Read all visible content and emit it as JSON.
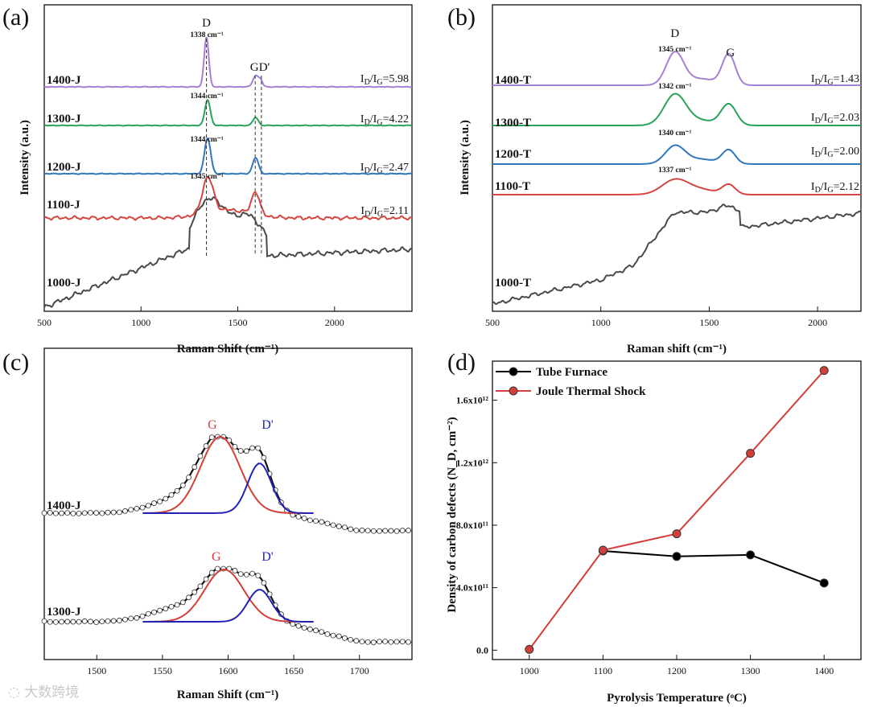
{
  "panel_letters": [
    "(a)",
    "(b)",
    "(c)",
    "(d)"
  ],
  "chart_data": [
    {
      "panel": "(a)",
      "type": "line",
      "xlabel": "Raman Shift (cm⁻¹)",
      "ylabel": "Intensity (a.u.)",
      "xlim": [
        500,
        2400
      ],
      "x_ticks": [
        "500",
        "1000",
        "1500",
        "2000"
      ],
      "peak_labels": [
        "D",
        "G",
        "D'"
      ],
      "series": [
        {
          "name": "1000-J",
          "ratio": ""
        },
        {
          "name": "1100-J",
          "ratio": "2.11",
          "peak": "1345 cm⁻¹"
        },
        {
          "name": "1200-J",
          "ratio": "2.47",
          "peak": "1344 cm⁻¹"
        },
        {
          "name": "1300-J",
          "ratio": "4.22",
          "peak": "1344 cm⁻¹"
        },
        {
          "name": "1400-J",
          "ratio": "5.98",
          "peak": "1338 cm⁻¹"
        }
      ]
    },
    {
      "panel": "(b)",
      "type": "line",
      "xlabel": "Raman shift (cm⁻¹)",
      "ylabel": "Intensity (a.u.)",
      "xlim": [
        500,
        2200
      ],
      "x_ticks": [
        "500",
        "1000",
        "1500",
        "2000"
      ],
      "peak_labels": [
        "D",
        "G"
      ],
      "series": [
        {
          "name": "1000-T",
          "ratio": ""
        },
        {
          "name": "1100-T",
          "ratio": "2.12",
          "peak": "1337 cm⁻¹"
        },
        {
          "name": "1200-T",
          "ratio": "2.00",
          "peak": "1340 cm⁻¹"
        },
        {
          "name": "1300-T",
          "ratio": "2.03",
          "peak": "1342 cm⁻¹"
        },
        {
          "name": "1400-T",
          "ratio": "1.43",
          "peak": "1345 cm⁻¹"
        }
      ]
    },
    {
      "panel": "(c)",
      "type": "line",
      "xlabel": "Raman Shift (cm⁻¹)",
      "xlim": [
        1460,
        1740
      ],
      "x_ticks": [
        "1500",
        "1550",
        "1600",
        "1650",
        "1700"
      ],
      "fit_labels": [
        "G",
        "D'"
      ],
      "series": [
        {
          "name": "1400-J",
          "G_center": 1594,
          "Dp_center": 1624
        },
        {
          "name": "1300-J",
          "G_center": 1597,
          "Dp_center": 1624
        }
      ]
    },
    {
      "panel": "(d)",
      "type": "line",
      "xlabel": "Pyrolysis Temperature (ᵒC)",
      "ylabel": "Density of carbon defects (N_D, cm⁻²)",
      "x": [
        1000,
        1100,
        1200,
        1300,
        1400
      ],
      "x_ticks": [
        "1000",
        "1100",
        "1200",
        "1300",
        "1400"
      ],
      "xlim": [
        950,
        1450
      ],
      "ylim": [
        -60000000000.0,
        1850000000000.0
      ],
      "y_ticks": [
        {
          "value": 0,
          "label": "0.0"
        },
        {
          "value": 400000000000.0,
          "label": "4.0x10¹¹"
        },
        {
          "value": 800000000000.0,
          "label": "8.0x10¹¹"
        },
        {
          "value": 1200000000000.0,
          "label": "1.2x10¹²"
        },
        {
          "value": 1600000000000.0,
          "label": "1.6x10¹²"
        }
      ],
      "legend_position": "top-left",
      "series": [
        {
          "name": "Tube Furnace",
          "color": "#000000",
          "x": [
            1100,
            1200,
            1300,
            1400
          ],
          "values": [
            635000000000.0,
            600000000000.0,
            610000000000.0,
            430000000000.0
          ]
        },
        {
          "name": "Joule Thermal Shock",
          "color": "#d23f3a",
          "x": [
            1000,
            1100,
            1200,
            1300,
            1400
          ],
          "values": [
            5000000000.0,
            640000000000.0,
            745000000000.0,
            1260000000000.0,
            1790000000000.0
          ]
        }
      ]
    }
  ],
  "colors": {
    "1000": "#4a4a4a",
    "1100": "#d4463f",
    "1200": "#2f77bd",
    "1300": "#2aa35a",
    "1400": "#a77fd0",
    "fitG": "#d23f3a",
    "fitDp": "#2222b5"
  },
  "watermark": "大数跨境"
}
